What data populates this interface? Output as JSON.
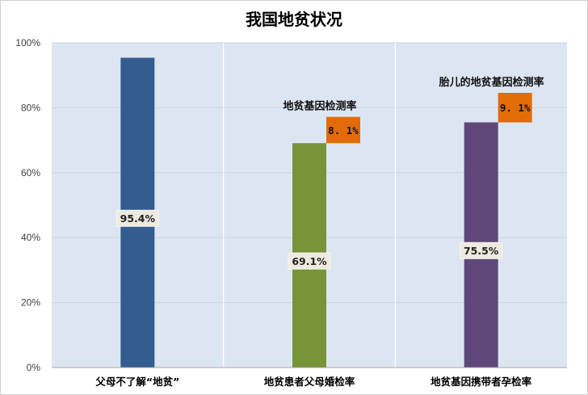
{
  "chart_data": {
    "type": "bar",
    "title": "我国地贫状况",
    "categories": [
      "父母不了解“地贫”",
      "地贫患者父母婚检率",
      "地贫基因携带者孕检率"
    ],
    "values": [
      95.4,
      69.1,
      75.5
    ],
    "value_labels": [
      "95.4%",
      "69.1%",
      "75.5%"
    ],
    "bar_colors": [
      "#335d8f",
      "#779438",
      "#5f4879"
    ],
    "ylim": [
      0,
      100
    ],
    "yticks": [
      0,
      20,
      40,
      60,
      80,
      100
    ],
    "ytick_labels": [
      "0%",
      "20%",
      "40%",
      "60%",
      "80%",
      "100%"
    ],
    "grid": true,
    "plot_background": "#dce6f2",
    "annotations": [
      {
        "category_index": 1,
        "label": "地贫基因检测率",
        "value": 8.1,
        "value_label": "8. 1%",
        "color": "#e36c09"
      },
      {
        "category_index": 2,
        "label": "胎儿的地贫基因检测率",
        "value": 9.1,
        "value_label": "9. 1%",
        "color": "#e36c09"
      }
    ]
  }
}
